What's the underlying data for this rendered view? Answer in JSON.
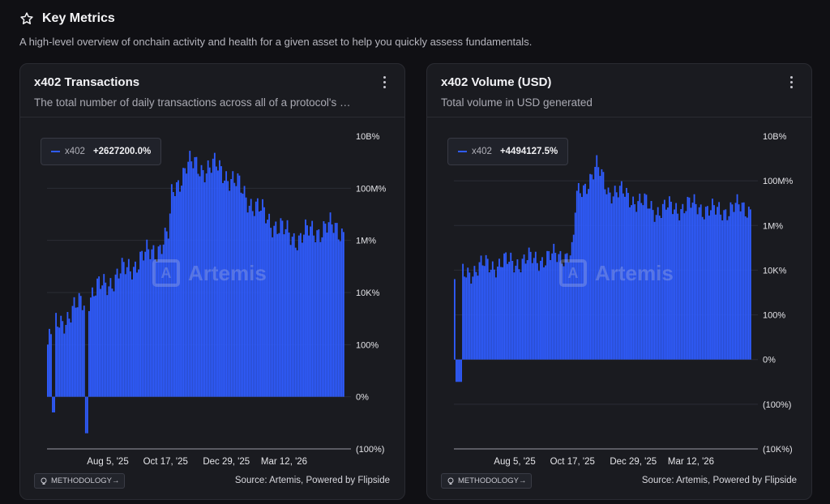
{
  "header": {
    "icon": "star-icon",
    "title": "Key Metrics",
    "subtitle": "A high-level overview of onchain activity and health for a given asset to help you quickly assess fundamentals."
  },
  "cards": [
    {
      "title": "x402 Transactions",
      "description": "The total number of daily transactions across all of a protocol's …",
      "legend_name": "x402",
      "legend_value": "+2627200.0%",
      "watermark": "Artemis",
      "methodology_label": "METHODOLOGY→",
      "source": "Source: Artemis, Powered by Flipside"
    },
    {
      "title": "x402 Volume (USD)",
      "description": "Total volume in USD generated",
      "legend_name": "x402",
      "legend_value": "+4494127.5%",
      "watermark": "Artemis",
      "methodology_label": "METHODOLOGY→",
      "source": "Source: Artemis, Powered by Flipside"
    }
  ],
  "colors": {
    "series": "#2f5cff",
    "grid": "#2e3038",
    "background": "#1a1b20"
  },
  "chart_data": [
    {
      "type": "bar",
      "scale": "symlog-percent",
      "yticks": [
        "10B%",
        "100M%",
        "1M%",
        "10K%",
        "100%",
        "0%",
        "(100%)"
      ],
      "xticks": [
        "Aug 5, '25",
        "Oct 17, '25",
        "Dec 29, '25",
        "Mar 12, '26"
      ],
      "series": [
        {
          "name": "x402"
        }
      ],
      "profile": [
        [
          0.0,
          2.0
        ],
        [
          0.03,
          2.8
        ],
        [
          0.08,
          3.2
        ],
        [
          0.13,
          3.8
        ],
        [
          0.18,
          4.2
        ],
        [
          0.23,
          4.6
        ],
        [
          0.28,
          5.0
        ],
        [
          0.33,
          5.4
        ],
        [
          0.38,
          5.8
        ],
        [
          0.41,
          6.2
        ],
        [
          0.42,
          7.8
        ],
        [
          0.47,
          8.9
        ],
        [
          0.52,
          8.8
        ],
        [
          0.57,
          8.8
        ],
        [
          0.6,
          8.6
        ],
        [
          0.65,
          8.0
        ],
        [
          0.7,
          7.3
        ],
        [
          0.75,
          6.8
        ],
        [
          0.8,
          6.3
        ],
        [
          0.85,
          6.1
        ],
        [
          0.88,
          6.3
        ],
        [
          0.94,
          6.5
        ],
        [
          1.0,
          6.4
        ]
      ],
      "dips": [
        [
          0.02,
          -0.6
        ],
        [
          0.13,
          -1.4
        ]
      ]
    },
    {
      "type": "bar",
      "scale": "symlog-percent",
      "yticks": [
        "10B%",
        "100M%",
        "1M%",
        "10K%",
        "100%",
        "0%",
        "(100%)",
        "(10K%)"
      ],
      "xticks": [
        "Aug 5, '25",
        "Oct 17, '25",
        "Dec 29, '25",
        "Mar 12, '26"
      ],
      "series": [
        {
          "name": "x402"
        }
      ],
      "profile": [
        [
          0.0,
          3.6
        ],
        [
          0.04,
          3.9
        ],
        [
          0.1,
          4.2
        ],
        [
          0.16,
          4.3
        ],
        [
          0.22,
          4.4
        ],
        [
          0.28,
          4.5
        ],
        [
          0.34,
          4.6
        ],
        [
          0.4,
          4.8
        ],
        [
          0.41,
          7.2
        ],
        [
          0.45,
          8.0
        ],
        [
          0.48,
          8.6
        ],
        [
          0.52,
          7.6
        ],
        [
          0.57,
          7.4
        ],
        [
          0.62,
          7.1
        ],
        [
          0.68,
          6.7
        ],
        [
          0.75,
          6.8
        ],
        [
          0.82,
          6.9
        ],
        [
          0.88,
          6.6
        ],
        [
          0.94,
          6.8
        ],
        [
          1.0,
          6.8
        ]
      ],
      "dips": [
        [
          0.01,
          -1.0
        ],
        [
          0.02,
          -1.0
        ]
      ]
    }
  ]
}
